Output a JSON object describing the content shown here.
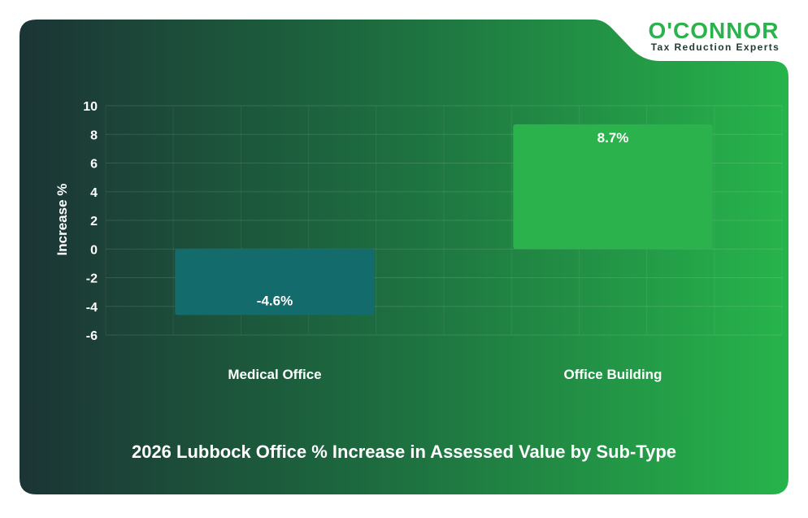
{
  "brand": {
    "name": "O'CONNOR",
    "tagline": "Tax Reduction Experts",
    "accent_color": "#2bb24c",
    "ink_color": "#1f3a33"
  },
  "chart_data": {
    "type": "bar",
    "title": "2026 Lubbock Office % Increase in Assessed Value by Sub-Type",
    "xlabel": "",
    "ylabel": "Increase %",
    "ylim": [
      -6,
      10
    ],
    "yticks": [
      10,
      8,
      6,
      4,
      2,
      0,
      -2,
      -4,
      -6
    ],
    "grid": true,
    "categories": [
      "Medical Office",
      "Office Building"
    ],
    "values": [
      -4.6,
      8.7
    ],
    "data_labels": [
      "-4.6%",
      "8.7%"
    ],
    "bar_colors": [
      "#146b6b",
      "#2bb24c"
    ]
  }
}
